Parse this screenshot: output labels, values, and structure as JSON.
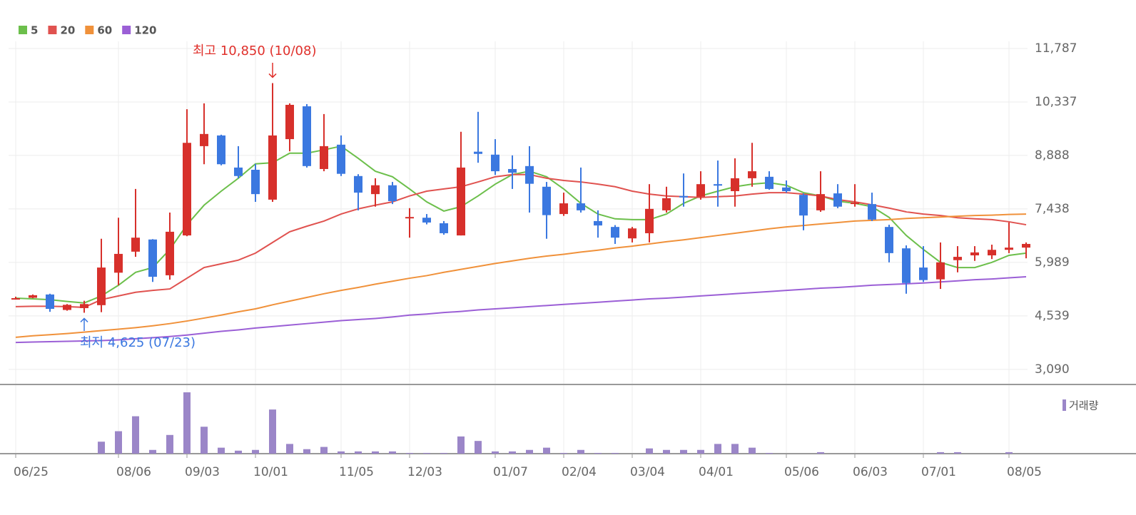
{
  "chart_data": {
    "type": "candlestick",
    "categories": [
      "06/25",
      null,
      null,
      null,
      null,
      null,
      "08/06",
      null,
      null,
      null,
      "09/03",
      null,
      null,
      null,
      "10/01",
      null,
      null,
      null,
      null,
      "11/05",
      null,
      null,
      null,
      "12/03",
      null,
      null,
      null,
      null,
      "01/07",
      null,
      null,
      null,
      "02/04",
      null,
      null,
      null,
      "03/04",
      null,
      null,
      null,
      "04/01",
      null,
      null,
      null,
      null,
      "05/06",
      null,
      null,
      null,
      "06/03",
      null,
      null,
      null,
      "07/01",
      null,
      null,
      null,
      null,
      "08/05",
      null
    ],
    "open": [
      5000,
      5030,
      5120,
      4700,
      4750,
      4830,
      5710,
      6280,
      6610,
      5640,
      6720,
      9140,
      9430,
      8560,
      8500,
      7690,
      9330,
      10220,
      8520,
      9180,
      8330,
      7840,
      8080,
      7200,
      7200,
      7050,
      6720,
      8990,
      8910,
      8520,
      8600,
      8040,
      7300,
      7590,
      7110,
      6950,
      6640,
      6780,
      7400,
      7790,
      7770,
      8110,
      7920,
      8270,
      8310,
      8020,
      7820,
      7400,
      7860,
      7570,
      7570,
      6950,
      6370,
      5850,
      5530,
      6050,
      6180,
      6180,
      6330,
      6390
    ],
    "high": [
      5060,
      5120,
      5140,
      4860,
      4950,
      6630,
      7200,
      7980,
      6620,
      7340,
      10140,
      10300,
      9450,
      9140,
      8660,
      10850,
      10300,
      10280,
      10010,
      9430,
      8380,
      8270,
      8170,
      7460,
      7300,
      7110,
      9530,
      10070,
      9330,
      8890,
      9140,
      8170,
      7880,
      8560,
      7400,
      7000,
      6950,
      8110,
      8040,
      8400,
      8460,
      8750,
      8810,
      9230,
      8460,
      8210,
      7860,
      8460,
      8110,
      8110,
      7880,
      7010,
      6450,
      6430,
      6530,
      6430,
      6430,
      6470,
      7070,
      6530
    ],
    "low": [
      4980,
      5020,
      4650,
      4680,
      4625,
      4640,
      5370,
      6140,
      5460,
      5520,
      6700,
      8650,
      8620,
      8270,
      7630,
      7630,
      9000,
      8560,
      8460,
      8330,
      7400,
      7500,
      7570,
      6660,
      7020,
      6740,
      6720,
      8690,
      8360,
      7980,
      7340,
      6630,
      7250,
      7340,
      6660,
      6490,
      6530,
      6530,
      7340,
      7500,
      7690,
      7500,
      7500,
      8040,
      7960,
      7880,
      6860,
      7360,
      7460,
      7500,
      7110,
      5990,
      5140,
      5460,
      5270,
      5720,
      6030,
      6080,
      6240,
      6100
    ],
    "close": [
      5020,
      5100,
      4730,
      4840,
      4860,
      5850,
      6220,
      6660,
      5600,
      6820,
      9230,
      9470,
      8650,
      8330,
      7840,
      9430,
      10260,
      8600,
      9140,
      8390,
      7880,
      8080,
      7650,
      7220,
      7070,
      6780,
      8560,
      8930,
      8460,
      8420,
      8120,
      7270,
      7590,
      7400,
      6990,
      6660,
      6910,
      7440,
      7730,
      7750,
      8110,
      8070,
      8270,
      8460,
      7980,
      7920,
      7260,
      7840,
      7500,
      7610,
      7150,
      6240,
      5430,
      5510,
      5990,
      6140,
      6260,
      6330,
      6390,
      6490
    ],
    "up_color": "#d7302b",
    "down_color": "#3b78e0",
    "series": [
      {
        "name": "5",
        "color": "#6cbf4b",
        "values": [
          5020,
          5000,
          4980,
          4930,
          4890,
          5080,
          5370,
          5720,
          5850,
          6340,
          7010,
          7540,
          7920,
          8270,
          8660,
          8690,
          8950,
          8950,
          9040,
          9140,
          8810,
          8460,
          8310,
          7980,
          7630,
          7380,
          7500,
          7790,
          8110,
          8370,
          8460,
          8310,
          7980,
          7590,
          7300,
          7170,
          7150,
          7150,
          7300,
          7590,
          7790,
          7920,
          8040,
          8110,
          8150,
          8080,
          7880,
          7790,
          7650,
          7590,
          7500,
          7210,
          6720,
          6340,
          5990,
          5850,
          5850,
          5990,
          6180,
          6240
        ]
      },
      {
        "name": "20",
        "color": "#e0524f",
        "values": [
          4790,
          4800,
          4800,
          4790,
          4770,
          4980,
          5080,
          5180,
          5230,
          5270,
          5560,
          5850,
          5950,
          6050,
          6240,
          6530,
          6820,
          6970,
          7110,
          7300,
          7440,
          7540,
          7630,
          7790,
          7920,
          7980,
          8040,
          8170,
          8310,
          8370,
          8370,
          8270,
          8210,
          8170,
          8110,
          8040,
          7920,
          7840,
          7790,
          7770,
          7750,
          7770,
          7790,
          7840,
          7880,
          7880,
          7840,
          7790,
          7690,
          7630,
          7550,
          7460,
          7360,
          7300,
          7260,
          7200,
          7170,
          7150,
          7090,
          7010
        ]
      },
      {
        "name": "60",
        "color": "#f0913a",
        "values": [
          3960,
          4000,
          4030,
          4060,
          4100,
          4140,
          4180,
          4220,
          4270,
          4330,
          4400,
          4480,
          4560,
          4650,
          4730,
          4840,
          4940,
          5040,
          5140,
          5230,
          5310,
          5400,
          5480,
          5560,
          5630,
          5720,
          5800,
          5880,
          5960,
          6030,
          6100,
          6160,
          6210,
          6270,
          6320,
          6380,
          6430,
          6490,
          6550,
          6600,
          6660,
          6720,
          6780,
          6840,
          6900,
          6950,
          6990,
          7030,
          7070,
          7110,
          7130,
          7150,
          7180,
          7200,
          7220,
          7240,
          7260,
          7270,
          7290,
          7300
        ]
      },
      {
        "name": "120",
        "color": "#9b5fd6",
        "values": [
          3820,
          3830,
          3840,
          3850,
          3860,
          3870,
          3890,
          3920,
          3950,
          3980,
          4020,
          4070,
          4120,
          4160,
          4210,
          4250,
          4290,
          4330,
          4370,
          4410,
          4440,
          4470,
          4510,
          4560,
          4590,
          4630,
          4660,
          4700,
          4730,
          4760,
          4790,
          4820,
          4850,
          4880,
          4910,
          4940,
          4970,
          5000,
          5020,
          5050,
          5080,
          5110,
          5140,
          5170,
          5200,
          5230,
          5260,
          5290,
          5310,
          5340,
          5370,
          5390,
          5410,
          5430,
          5460,
          5490,
          5520,
          5540,
          5570,
          5600
        ]
      }
    ],
    "volume": {
      "name": "거래량",
      "color": "#9b86c8",
      "values": [
        0,
        0,
        0,
        0,
        0,
        16,
        30,
        50,
        5,
        25,
        82,
        36,
        8,
        4,
        5,
        59,
        13,
        6,
        9,
        3,
        3,
        3,
        3,
        1,
        1,
        1,
        23,
        17,
        3,
        3,
        5,
        8,
        1,
        5,
        1,
        1,
        0,
        7,
        5,
        5,
        5,
        13,
        13,
        8,
        1,
        0,
        0,
        2,
        0,
        0,
        0,
        0,
        0,
        0,
        2,
        2,
        0,
        0,
        2,
        0
      ]
    },
    "ylim": [
      2700,
      11980
    ],
    "yticks": [
      {
        "value": 3090,
        "label": "3,090"
      },
      {
        "value": 4539,
        "label": "4,539"
      },
      {
        "value": 5989,
        "label": "5,989"
      },
      {
        "value": 7438,
        "label": "7,438"
      },
      {
        "value": 8888,
        "label": "8,888"
      },
      {
        "value": 10337,
        "label": "10,337"
      },
      {
        "value": 11787,
        "label": "11,787"
      }
    ],
    "grid": true,
    "annotations": [
      "최고 10,850 (10/08)",
      "최저 4,625 (07/23)"
    ]
  }
}
